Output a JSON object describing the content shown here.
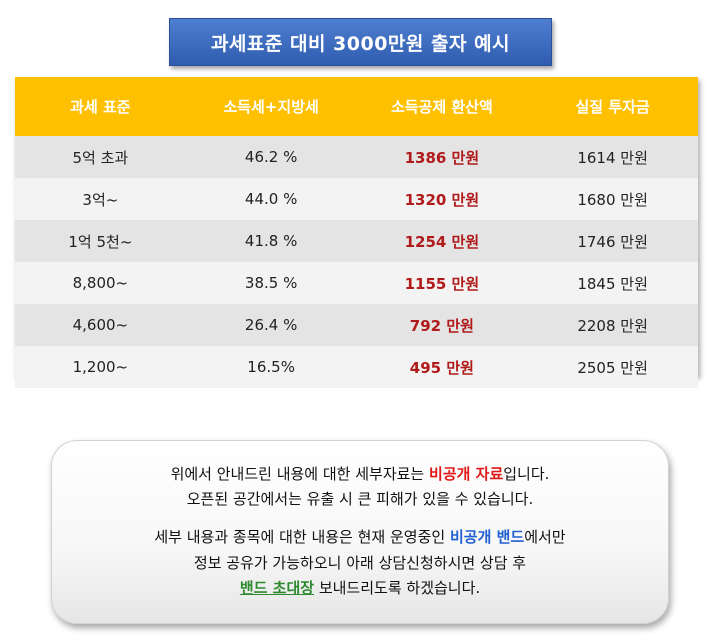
{
  "title": "과세표준 대비 3000만원 출자 예시",
  "table": {
    "headers": [
      "과세 표준",
      "소득세+지방세",
      "소득공제 환산액",
      "실질 투자금"
    ],
    "rows": [
      {
        "bracket": "5억 초과",
        "rate": "46.2 %",
        "deduction": "1386 만원",
        "actual": "1614 만원"
      },
      {
        "bracket": "3억~",
        "rate": "44.0 %",
        "deduction": "1320 만원",
        "actual": "1680 만원"
      },
      {
        "bracket": "1억 5천~",
        "rate": "41.8 %",
        "deduction": "1254 만원",
        "actual": "1746 만원"
      },
      {
        "bracket": "8,800~",
        "rate": "38.5 %",
        "deduction": "1155 만원",
        "actual": "1845 만원"
      },
      {
        "bracket": "4,600~",
        "rate": "26.4 %",
        "deduction": "792 만원",
        "actual": "2208 만원"
      },
      {
        "bracket": "1,200~",
        "rate": "16.5%",
        "deduction": "495 만원",
        "actual": "2505 만원"
      }
    ]
  },
  "notice": {
    "line1_pre": "위에서 안내드린 내용에 대한 세부자료는 ",
    "line1_highlight": "비공개 자료",
    "line1_post": "입니다.",
    "line2": "오픈된 공간에서는 유출 시 큰 피해가 있을 수 있습니다.",
    "line3_pre": "세부 내용과 종목에 대한 내용은 현재 운영중인 ",
    "line3_highlight": "비공개 밴드",
    "line3_post": "에서만",
    "line4": "정보 공유가 가능하오니 아래 상담신청하시면 상담 후",
    "line5_highlight": "밴드 초대장",
    "line5_post": " 보내드리도록 하겠습니다.",
    "colors": {
      "red": "#e01818",
      "blue": "#1f5fcf",
      "green": "#2f8a2f"
    }
  },
  "colors": {
    "title_bg": "#3a6cc4",
    "header_bg": "#ffc000",
    "deduction_text": "#b01a1a"
  }
}
